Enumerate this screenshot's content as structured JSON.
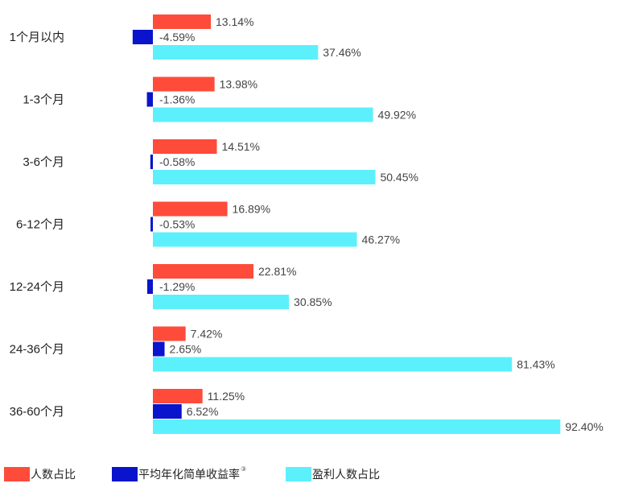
{
  "chart_data": {
    "type": "bar",
    "orientation": "horizontal",
    "categories": [
      "1个月以内",
      "1-3个月",
      "3-6个月",
      "6-12个月",
      "12-24个月",
      "24-36个月",
      "36-60个月"
    ],
    "series": [
      {
        "name": "人数占比",
        "color": "#ff4b3a",
        "values": [
          13.14,
          13.98,
          14.51,
          16.89,
          22.81,
          7.42,
          11.25
        ],
        "labels": [
          "13.14%",
          "13.98%",
          "14.51%",
          "16.89%",
          "22.81%",
          "7.42%",
          "11.25%"
        ]
      },
      {
        "name": "平均年化简单收益率",
        "name_sup": "③",
        "color": "#0a14cc",
        "values": [
          -4.59,
          -1.36,
          -0.58,
          -0.53,
          -1.29,
          2.65,
          6.52
        ],
        "labels": [
          "-4.59%",
          "-1.36%",
          "-0.58%",
          "-0.53%",
          "-1.29%",
          "2.65%",
          "6.52%"
        ]
      },
      {
        "name": "盈利人数占比",
        "color": "#5cf0fd",
        "values": [
          37.46,
          49.92,
          50.45,
          46.27,
          30.85,
          81.43,
          92.4
        ],
        "labels": [
          "37.46%",
          "49.92%",
          "50.45%",
          "46.27%",
          "30.85%",
          "81.43%",
          "92.40%"
        ]
      }
    ],
    "legend_position": "bottom-left",
    "grid": false
  }
}
